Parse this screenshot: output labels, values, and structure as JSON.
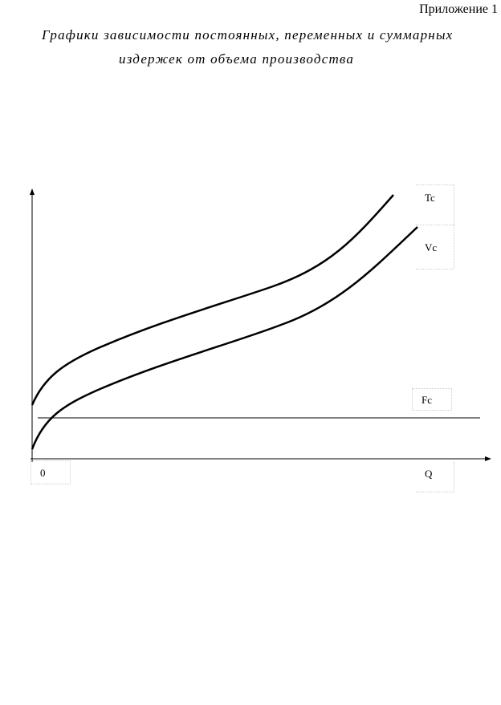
{
  "header": {
    "appendix": "Приложение 1",
    "title_lines": [
      "Графики зависимости постоянных, переменных и суммарных",
      "издержек от объема производства"
    ]
  },
  "diagram": {
    "labels": {
      "tc": "Tc",
      "vc": "Vc",
      "fc": "Fc",
      "origin": "0",
      "q": "Q"
    }
  }
}
